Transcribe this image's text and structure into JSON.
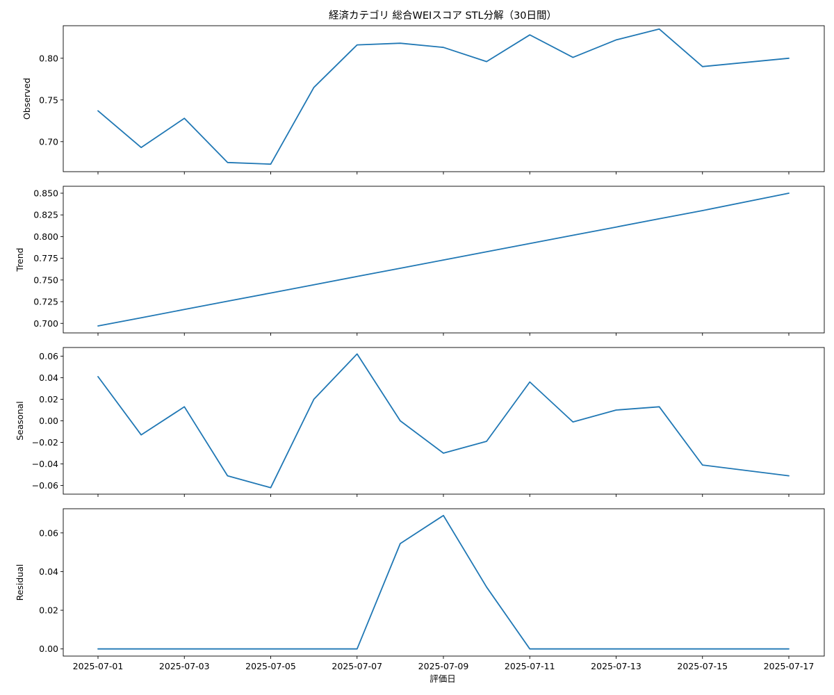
{
  "chart_data": {
    "type": "line",
    "title": "経済カテゴリ 総合WEIスコア STL分解（30日間）",
    "xlabel": "評価日",
    "x": [
      "2025-07-01",
      "2025-07-02",
      "2025-07-03",
      "2025-07-04",
      "2025-07-05",
      "2025-07-06",
      "2025-07-07",
      "2025-07-08",
      "2025-07-09",
      "2025-07-10",
      "2025-07-11",
      "2025-07-12",
      "2025-07-13",
      "2025-07-14",
      "2025-07-15",
      "2025-07-17"
    ],
    "x_ticks": [
      "2025-07-01",
      "2025-07-03",
      "2025-07-05",
      "2025-07-07",
      "2025-07-09",
      "2025-07-11",
      "2025-07-13",
      "2025-07-15",
      "2025-07-17"
    ],
    "line_color": "#1f77b4",
    "grid": false,
    "panels": [
      {
        "ylabel": "Observed",
        "ylim": [
          0.664,
          0.839
        ],
        "yticks": [
          "0.70",
          "0.75",
          "0.80"
        ],
        "values": [
          0.737,
          0.693,
          0.728,
          0.675,
          0.673,
          0.765,
          0.816,
          0.818,
          0.813,
          0.796,
          0.828,
          0.801,
          0.822,
          0.835,
          0.79,
          0.8
        ]
      },
      {
        "ylabel": "Trend",
        "ylim": [
          0.689,
          0.858
        ],
        "yticks": [
          "0.700",
          "0.725",
          "0.750",
          "0.775",
          "0.800",
          "0.825",
          "0.850"
        ],
        "values": [
          0.697,
          0.7065,
          0.716,
          0.7255,
          0.735,
          0.7445,
          0.754,
          0.7635,
          0.773,
          0.7825,
          0.792,
          0.8015,
          0.811,
          0.8205,
          0.83,
          0.85
        ]
      },
      {
        "ylabel": "Seasonal",
        "ylim": [
          -0.068,
          0.068
        ],
        "yticks": [
          "0.06",
          "0.04",
          "0.02",
          "0.00",
          "−0.02",
          "−0.04",
          "−0.06"
        ],
        "values": [
          0.041,
          -0.013,
          0.013,
          -0.051,
          -0.062,
          0.02,
          0.062,
          0.0,
          -0.03,
          -0.019,
          0.036,
          -0.001,
          0.01,
          0.013,
          -0.041,
          -0.051
        ]
      },
      {
        "ylabel": "Residual",
        "ylim": [
          -0.0037,
          0.0725
        ],
        "yticks": [
          "0.00",
          "0.02",
          "0.04",
          "0.06"
        ],
        "values": [
          0,
          0,
          0,
          0,
          0,
          0,
          0,
          0.0545,
          0.069,
          0.032,
          0,
          0,
          0,
          0,
          0,
          0
        ]
      }
    ]
  }
}
